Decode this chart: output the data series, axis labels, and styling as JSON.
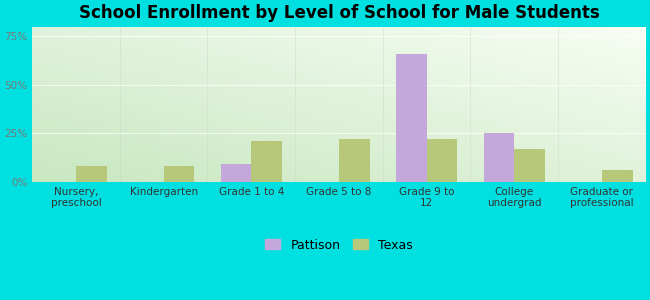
{
  "title": "School Enrollment by Level of School for Male Students",
  "categories": [
    "Nursery,\npreschool",
    "Kindergarten",
    "Grade 1 to 4",
    "Grade 5 to 8",
    "Grade 9 to\n12",
    "College\nundergrad",
    "Graduate or\nprofessional"
  ],
  "pattison_values": [
    0,
    0,
    9,
    0,
    66,
    25,
    0
  ],
  "texas_values": [
    8,
    8,
    21,
    22,
    22,
    17,
    6
  ],
  "pattison_color": "#c4a8dc",
  "texas_color": "#b8c87a",
  "background_outer": "#00e0e0",
  "title_fontsize": 12,
  "tick_label_fontsize": 7.5,
  "ylim": [
    0,
    80
  ],
  "yticks": [
    0,
    25,
    50,
    75
  ],
  "ytick_labels": [
    "0%",
    "25%",
    "50%",
    "75%"
  ],
  "bar_width": 0.35,
  "legend_labels": [
    "Pattison",
    "Texas"
  ],
  "grad_bottom_left": "#c8e8c0",
  "grad_top_right": "#f8fdf4",
  "grid_color": "#e0e8d8"
}
